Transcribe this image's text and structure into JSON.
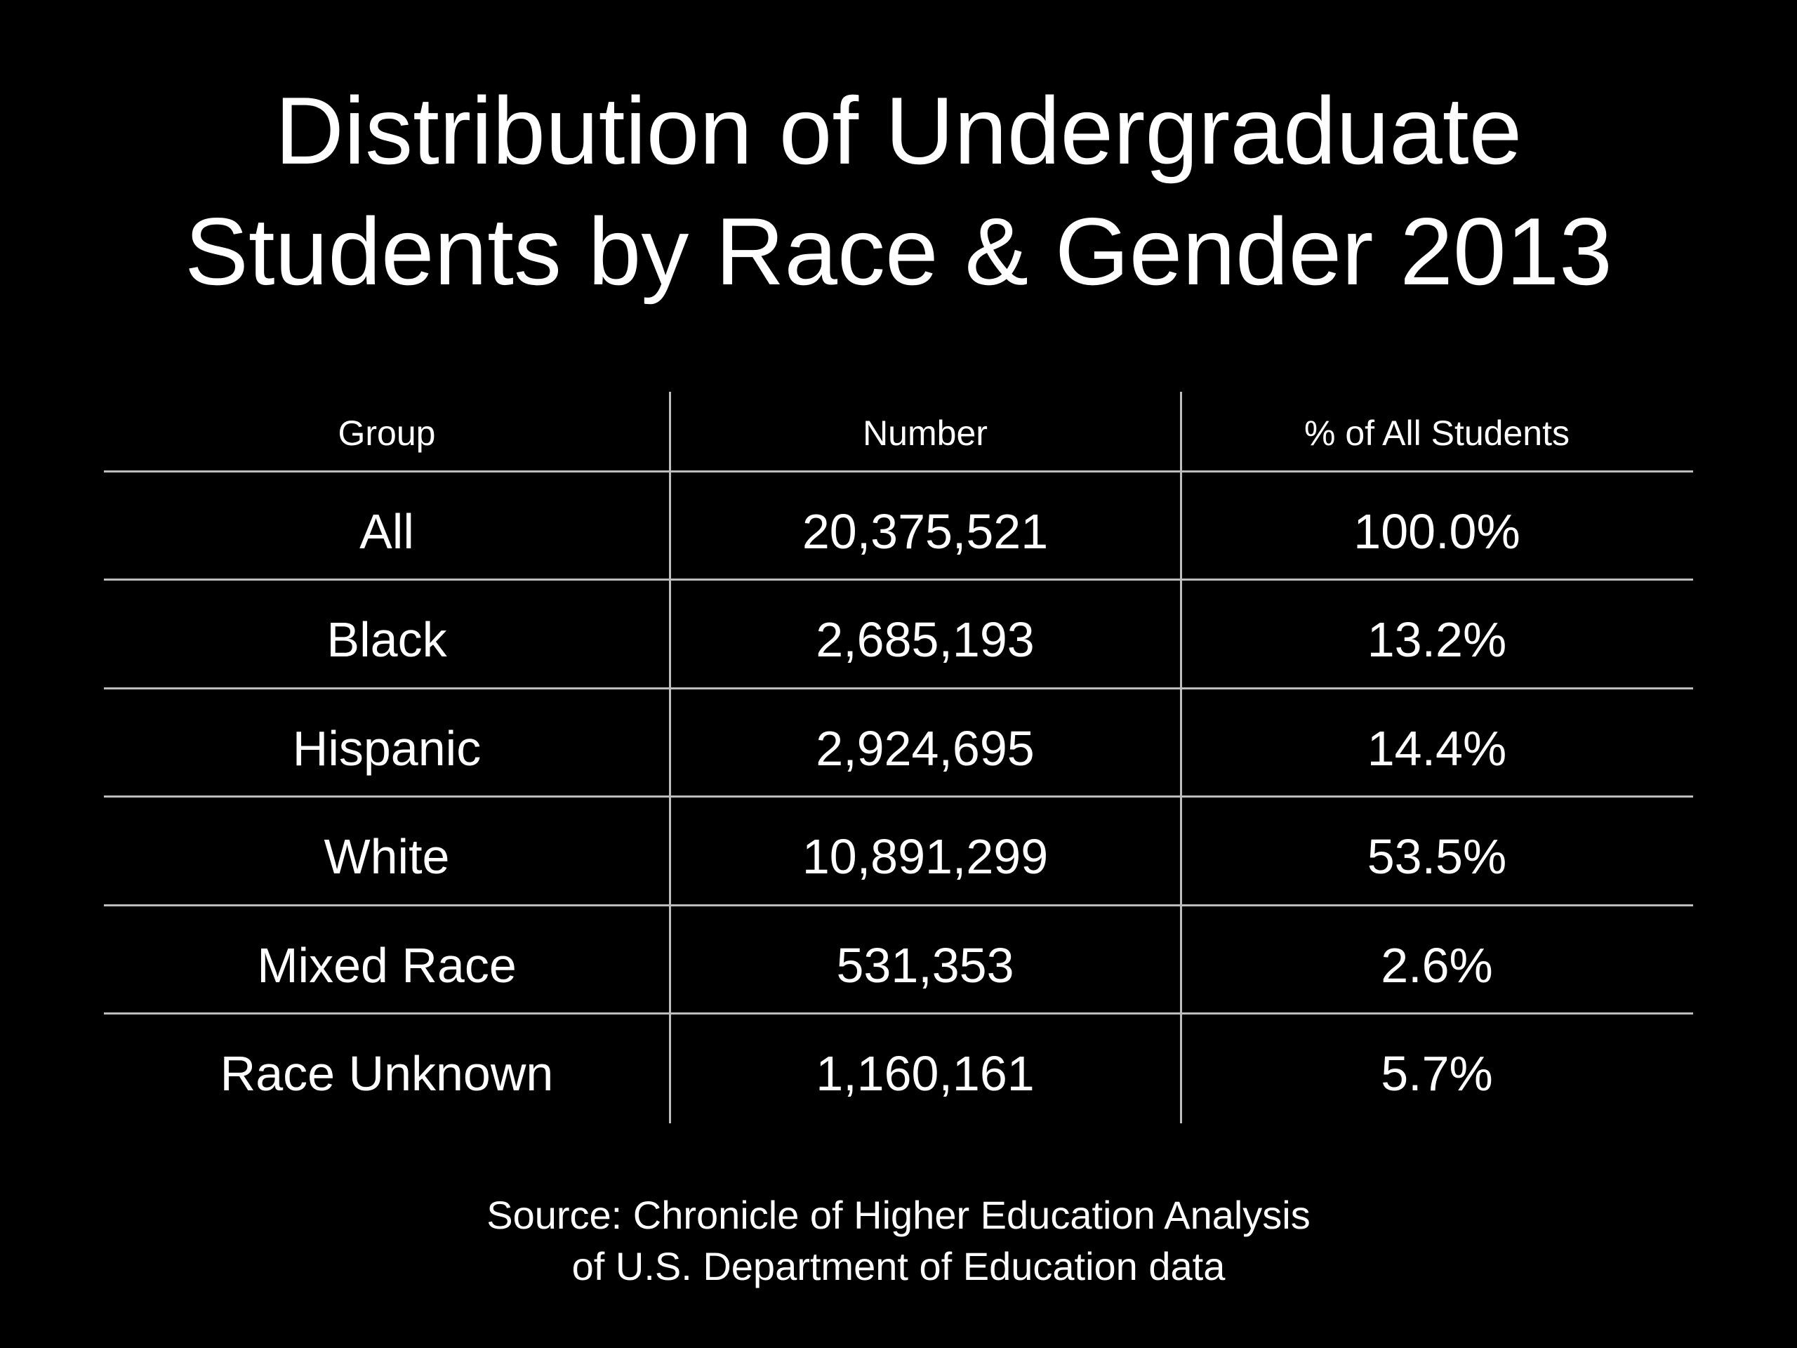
{
  "title_lines": [
    "Distribution of Undergraduate",
    "Students by Race & Gender 2013"
  ],
  "source_lines": [
    "Source: Chronicle of Higher Education Analysis",
    "of U.S. Department of Education data"
  ],
  "colors": {
    "background": "#000000",
    "text": "#ffffff",
    "rule": "#bdbdbd"
  },
  "chart_data": {
    "type": "table",
    "title": "Distribution of Undergraduate Students by Race & Gender 2013",
    "columns": [
      "Group",
      "Number",
      "% of All Students"
    ],
    "rows": [
      [
        "All",
        "20,375,521",
        "100.0%"
      ],
      [
        "Black",
        "2,685,193",
        "13.2%"
      ],
      [
        "Hispanic",
        "2,924,695",
        "14.4%"
      ],
      [
        "White",
        "10,891,299",
        "53.5%"
      ],
      [
        "Mixed Race",
        "531,353",
        "2.6%"
      ],
      [
        "Race Unknown",
        "1,160,161",
        "5.7%"
      ]
    ],
    "source": "Source: Chronicle of Higher Education Analysis of U.S. Department of Education data"
  }
}
